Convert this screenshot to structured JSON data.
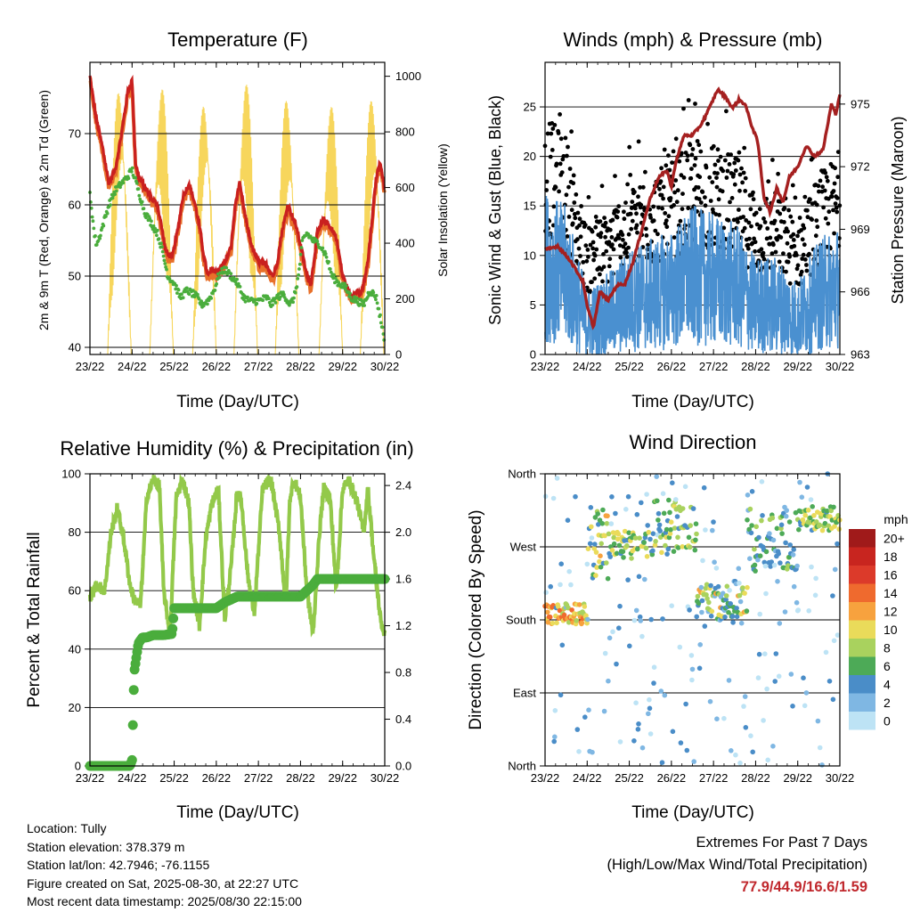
{
  "days": [
    "23/22",
    "24/22",
    "25/22",
    "26/22",
    "27/22",
    "28/22",
    "29/22",
    "30/22"
  ],
  "info": {
    "location": "Location: Tully",
    "elevation": "Station elevation: 378.379 m",
    "latlon": "Station lat/lon: 42.7946; -76.1155",
    "created": "Figure created on Sat, 2025-08-30, at 22:27 UTC",
    "recent": "Most recent data timestamp: 2025/08/30 22:15:00"
  },
  "extremes": {
    "title": "Extremes For Past 7 Days",
    "subtitle": "(High/Low/Max Wind/Total Precipitation)",
    "values": "77.9/44.9/16.6/1.59"
  },
  "colors": {
    "temp_2m": "#e8702a",
    "temp_9m": "#c9201f",
    "dewpoint": "#4aad3c",
    "solar": "#f6d24a",
    "wind": "#4a90d0",
    "gust": "#000000",
    "pressure": "#a52020",
    "rh": "#93c94a",
    "precip": "#4aad3c"
  },
  "chart_data": [
    {
      "type": "line",
      "title": "Temperature (F)",
      "xlabel": "Time (Day/UTC)",
      "ylabel": "2m & 9m T (Red, Orange) & 2m Td (Green)",
      "y2label": "Solar Insolation (Yellow)",
      "ylim": [
        39,
        80
      ],
      "y2lim": [
        0,
        1050
      ],
      "yticks": [
        40,
        50,
        60,
        70
      ],
      "y2ticks": [
        0,
        200,
        400,
        600,
        800,
        1000
      ],
      "xlim": [
        0,
        7
      ],
      "series": [
        {
          "key": "temp",
          "x": [
            0,
            0.15,
            0.3,
            0.45,
            0.6,
            0.75,
            0.9,
            1.0,
            1.08,
            1.15,
            1.25,
            1.45,
            1.6,
            1.7,
            1.8,
            1.95,
            2.1,
            2.2,
            2.35,
            2.5,
            2.6,
            2.7,
            2.8,
            2.9,
            3.0,
            3.2,
            3.35,
            3.45,
            3.55,
            3.7,
            3.85,
            4.0,
            4.2,
            4.35,
            4.45,
            4.55,
            4.7,
            4.9,
            5.05,
            5.15,
            5.25,
            5.4,
            5.55,
            5.7,
            5.85,
            6.0,
            6.1,
            6.2,
            6.3,
            6.45,
            6.6,
            6.7,
            6.8,
            6.9,
            7.0
          ],
          "y": [
            78,
            72,
            68,
            63,
            65,
            70,
            76,
            77.5,
            66,
            64,
            63,
            61,
            60,
            57,
            53.5,
            52.5,
            57,
            61,
            63,
            60,
            57,
            53,
            50,
            51,
            50.5,
            52,
            54,
            60,
            63,
            58,
            54,
            52,
            51.5,
            50,
            52,
            56,
            60,
            57,
            53,
            50,
            49,
            56,
            58,
            57,
            55.5,
            50,
            48.5,
            47,
            48,
            47.5,
            52,
            58,
            64,
            66,
            62
          ]
        },
        {
          "key": "dewpoint",
          "x": [
            0,
            0.05,
            0.1,
            0.15,
            0.2,
            0.25,
            0.35,
            0.45,
            0.6,
            0.75,
            0.9,
            1.0,
            1.1,
            1.3,
            1.5,
            1.6,
            1.7,
            1.85,
            2.0,
            2.15,
            2.3,
            2.45,
            2.55,
            2.65,
            2.8,
            2.95,
            3.05,
            3.2,
            3.35,
            3.5,
            3.65,
            3.8,
            4.0,
            4.2,
            4.3,
            4.45,
            4.6,
            4.75,
            4.85,
            4.95,
            5.05,
            5.15,
            5.3,
            5.45,
            5.6,
            5.75,
            5.9,
            6.05,
            6.2,
            6.35,
            6.5,
            6.65,
            6.8,
            6.9,
            7.0
          ],
          "y": [
            61.5,
            59,
            56,
            54.5,
            55,
            56,
            58,
            60,
            62,
            63,
            64,
            65,
            63,
            59,
            57,
            56,
            54,
            50,
            49,
            47,
            48,
            47.5,
            47,
            46,
            46.5,
            48,
            50,
            51,
            50,
            49,
            47,
            46.5,
            46.5,
            47,
            46,
            47,
            47.5,
            46,
            47,
            50,
            55,
            56,
            55,
            54.5,
            53,
            50,
            49,
            48.5,
            47,
            46.5,
            46,
            48,
            47,
            44,
            41
          ]
        }
      ],
      "solar": {
        "peak_days": [
          0.7,
          1.7,
          2.72,
          3.7,
          4.68,
          5.72,
          6.7
        ],
        "peaks": [
          1000,
          980,
          960,
          1000,
          950,
          910,
          960
        ]
      }
    },
    {
      "type": "scatter",
      "title": "Winds (mph) & Pressure (mb)",
      "xlabel": "Time (Day/UTC)",
      "ylabel": "Sonic Wind & Gust (Blue, Black)",
      "y2label": "Station Pressure (Maroon)",
      "ylim": [
        0,
        29.5
      ],
      "y2lim": [
        963,
        977
      ],
      "yticks": [
        0,
        5,
        10,
        15,
        20,
        25
      ],
      "y2ticks": [
        963,
        966,
        969,
        972,
        975
      ],
      "xlim": [
        0,
        7
      ],
      "wind_mean": {
        "x": [
          0,
          0.5,
          1.0,
          1.5,
          2.0,
          2.5,
          3.0,
          3.5,
          4.0,
          4.5,
          5.0,
          5.5,
          6.0,
          6.5,
          7.0
        ],
        "y": [
          9,
          8,
          3,
          4,
          5.5,
          6,
          6.5,
          8,
          7.5,
          7,
          5,
          5,
          3.5,
          6,
          7
        ]
      },
      "pressure": {
        "x": [
          0,
          0.3,
          0.6,
          0.9,
          1.0,
          1.15,
          1.3,
          1.5,
          1.7,
          1.9,
          2.1,
          2.3,
          2.5,
          2.7,
          2.9,
          3.0,
          3.1,
          3.3,
          3.5,
          3.7,
          3.9,
          4.1,
          4.3,
          4.45,
          4.6,
          4.75,
          4.9,
          5.05,
          5.2,
          5.35,
          5.5,
          5.65,
          5.8,
          6.0,
          6.2,
          6.4,
          6.6,
          6.8,
          6.9,
          7.0
        ],
        "y": [
          968,
          968.2,
          967.5,
          966.5,
          965.3,
          964.3,
          966,
          965.6,
          966.3,
          966.4,
          967.5,
          969,
          970.5,
          971.5,
          971.8,
          971,
          972.2,
          973.5,
          973.5,
          974,
          974.8,
          975.7,
          975.3,
          974.8,
          975.2,
          975,
          974,
          973.2,
          970.5,
          969.8,
          971,
          970.3,
          971.5,
          972,
          973,
          972.5,
          972.8,
          975,
          974.5,
          975.5
        ]
      }
    },
    {
      "type": "line",
      "title": "Relative Humidity (%) & Precipitation (in)",
      "xlabel": "Time (Day/UTC)",
      "ylabel": "Percent & Total Rainfall",
      "ylim": [
        0,
        100
      ],
      "y2lim": [
        0,
        2.5
      ],
      "yticks": [
        0,
        20,
        40,
        60,
        80,
        100
      ],
      "y2ticks": [
        "0.0",
        "0.4",
        "0.8",
        "1.2",
        "1.6",
        "2.0",
        "2.4"
      ],
      "xlim": [
        0,
        7
      ],
      "series": [
        {
          "key": "rh",
          "x": [
            0,
            0.15,
            0.35,
            0.5,
            0.65,
            0.8,
            0.95,
            1.05,
            1.2,
            1.35,
            1.5,
            1.65,
            1.75,
            1.9,
            2.05,
            2.2,
            2.35,
            2.45,
            2.6,
            2.75,
            2.9,
            3.05,
            3.2,
            3.35,
            3.5,
            3.6,
            3.75,
            3.9,
            4.1,
            4.3,
            4.5,
            4.65,
            4.75,
            4.85,
            5.0,
            5.15,
            5.3,
            5.45,
            5.55,
            5.7,
            5.85,
            6.0,
            6.15,
            6.35,
            6.5,
            6.6,
            6.75,
            6.9,
            7.0
          ],
          "y": [
            57,
            62,
            60,
            80,
            88,
            78,
            62,
            57,
            55,
            92,
            98,
            96,
            60,
            45,
            92,
            98,
            90,
            60,
            48,
            78,
            90,
            95,
            50,
            68,
            95,
            90,
            65,
            52,
            95,
            98,
            80,
            55,
            92,
            98,
            92,
            60,
            45,
            80,
            95,
            92,
            60,
            95,
            98,
            90,
            80,
            95,
            70,
            50,
            45
          ]
        },
        {
          "key": "precip",
          "x": [
            0,
            0.5,
            0.9,
            0.95,
            1.0,
            1.05,
            1.15,
            1.25,
            1.35,
            1.5,
            1.75,
            1.95,
            2.0,
            2.5,
            2.9,
            3.0,
            3.2,
            3.5,
            3.95,
            4.0,
            4.5,
            5.0,
            5.3,
            5.4,
            5.5,
            6.0,
            6.5,
            7.0
          ],
          "y": [
            0,
            0,
            0,
            0,
            0.05,
            0.8,
            1.05,
            1.1,
            1.1,
            1.12,
            1.12,
            1.13,
            1.35,
            1.35,
            1.35,
            1.35,
            1.4,
            1.45,
            1.45,
            1.45,
            1.45,
            1.45,
            1.55,
            1.6,
            1.6,
            1.6,
            1.6,
            1.6
          ]
        }
      ]
    },
    {
      "type": "scatter",
      "title": "Wind Direction",
      "xlabel": "Time (Day/UTC)",
      "ylabel": "Direction (Colored By Speed)",
      "yticks": [
        "North",
        "East",
        "South",
        "West",
        "North"
      ],
      "xlim": [
        0,
        7
      ],
      "legend_title": "mph",
      "legend_labels": [
        "20+",
        "18",
        "16",
        "14",
        "12",
        "10",
        "8",
        "6",
        "4",
        "2",
        "0"
      ],
      "legend_colors": [
        "#a01a1a",
        "#c8251f",
        "#dc3a2a",
        "#ef6a2e",
        "#f7a23e",
        "#eadb5a",
        "#a9d25e",
        "#4daa57",
        "#4a8dc8",
        "#7fb7e3",
        "#bde3f5"
      ],
      "clusters": [
        {
          "x0": 0,
          "x1": 1.0,
          "dir": [
            175,
            200
          ],
          "speed": [
            9,
            16
          ]
        },
        {
          "x0": 1.0,
          "x1": 1.5,
          "dir": [
            230,
            320
          ],
          "speed": [
            4,
            14
          ]
        },
        {
          "x0": 1.5,
          "x1": 2.6,
          "dir": [
            255,
            290
          ],
          "speed": [
            4,
            12
          ]
        },
        {
          "x0": 2.6,
          "x1": 3.6,
          "dir": [
            260,
            330
          ],
          "speed": [
            5,
            11
          ]
        },
        {
          "x0": 3.6,
          "x1": 4.8,
          "dir": [
            180,
            225
          ],
          "speed": [
            3,
            13
          ]
        },
        {
          "x0": 4.8,
          "x1": 6.0,
          "dir": [
            240,
            320
          ],
          "speed": [
            3,
            9
          ]
        },
        {
          "x0": 6.0,
          "x1": 7.0,
          "dir": [
            290,
            320
          ],
          "speed": [
            5,
            12
          ]
        }
      ]
    }
  ]
}
